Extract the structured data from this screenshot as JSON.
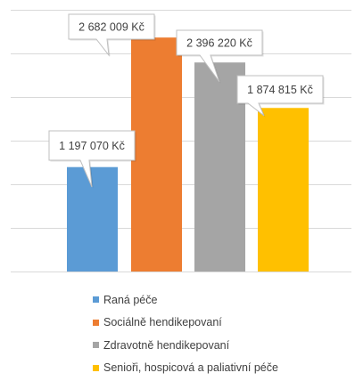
{
  "chart_data": {
    "type": "bar",
    "categories": [
      "Raná péče",
      "Sociálně hendikepovaní",
      "Zdravotně hendikepovaní",
      "Senioři, hospicová a paliativní péče"
    ],
    "values": [
      1197070,
      2682009,
      2396220,
      1874815
    ],
    "data_labels": [
      "1 197 070 Kč",
      "2 682 009 Kč",
      "2 396 220 Kč",
      "1 874 815 Kč"
    ],
    "colors": [
      "#5B9BD5",
      "#ED7D31",
      "#A5A5A5",
      "#FFC000"
    ],
    "ylim": [
      0,
      3000000
    ],
    "y_step": 500000,
    "grid": true,
    "legend_position": "bottom",
    "title": "",
    "xlabel": "",
    "ylabel": ""
  }
}
